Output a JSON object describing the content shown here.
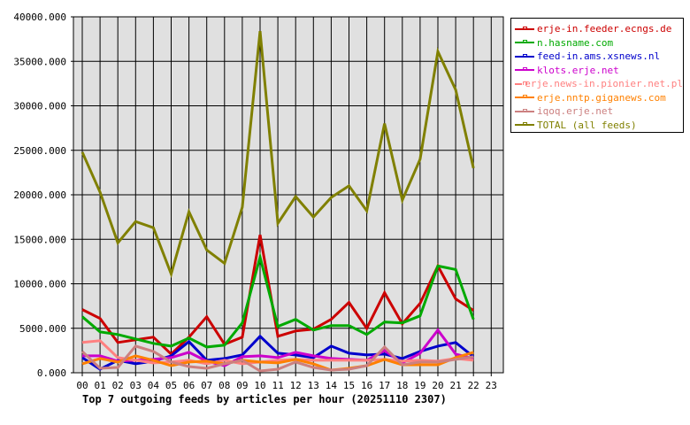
{
  "chart_data": {
    "type": "line",
    "title": "Top 7 outgoing feeds by articles per hour (20251110 2307)",
    "xlabel": "",
    "ylabel": "",
    "ylim": [
      0,
      40000
    ],
    "yticks": [
      "0.000",
      "5000.000",
      "10000.000",
      "15000.000",
      "20000.000",
      "25000.000",
      "30000.000",
      "35000.000",
      "40000.000"
    ],
    "categories": [
      "00",
      "01",
      "02",
      "03",
      "04",
      "05",
      "06",
      "07",
      "08",
      "09",
      "10",
      "11",
      "12",
      "13",
      "14",
      "15",
      "16",
      "17",
      "18",
      "19",
      "20",
      "21",
      "22",
      "23"
    ],
    "grid": true,
    "legend_position": "right",
    "series": [
      {
        "name": "erje-in.feeder.ecngs.de",
        "color": "#cc0000",
        "values": [
          7100,
          6100,
          3400,
          3700,
          4000,
          2100,
          4000,
          6300,
          3200,
          4000,
          15500,
          4100,
          4700,
          4900,
          6000,
          7900,
          5000,
          9000,
          5500,
          7800,
          12000,
          8300,
          7000,
          null
        ]
      },
      {
        "name": "n.hasname.com",
        "color": "#00aa00",
        "values": [
          6300,
          4600,
          4300,
          3800,
          3300,
          3000,
          3900,
          2900,
          3100,
          5600,
          13000,
          5200,
          6000,
          4800,
          5300,
          5300,
          4300,
          5700,
          5600,
          6400,
          12000,
          11600,
          6000,
          null
        ]
      },
      {
        "name": "feed-in.ams.xsnews.nl",
        "color": "#0000cc",
        "values": [
          1700,
          400,
          1400,
          1000,
          1300,
          1900,
          3500,
          1400,
          1600,
          2000,
          4100,
          2200,
          2000,
          1700,
          3000,
          2200,
          2000,
          2100,
          1600,
          2400,
          3000,
          3400,
          1800,
          null
        ]
      },
      {
        "name": "klots.erje.net",
        "color": "#cc00cc",
        "values": [
          1900,
          1900,
          1300,
          1400,
          1500,
          1700,
          2300,
          1300,
          800,
          1800,
          1900,
          1700,
          2300,
          1900,
          1600,
          1500,
          1400,
          2500,
          1100,
          2200,
          4800,
          2100,
          1600,
          null
        ]
      },
      {
        "name": "erje.news-in.pionier.net.pl",
        "color": "#ff8080",
        "values": [
          3400,
          3600,
          1700,
          1400,
          1100,
          1200,
          1400,
          1000,
          1400,
          1000,
          1200,
          1400,
          1500,
          1400,
          1400,
          1400,
          1400,
          1500,
          1300,
          1400,
          1300,
          1600,
          1400,
          null
        ]
      },
      {
        "name": "erje.nntp.giganews.com",
        "color": "#ff8000",
        "values": [
          1000,
          1600,
          1200,
          1900,
          1400,
          800,
          1200,
          1300,
          1000,
          1400,
          1200,
          1100,
          1500,
          1000,
          300,
          500,
          800,
          1500,
          900,
          900,
          900,
          1700,
          2300,
          null
        ]
      },
      {
        "name": "iqoq.erje.net",
        "color": "#cc8080",
        "values": [
          2400,
          500,
          600,
          3000,
          2400,
          1200,
          700,
          500,
          1000,
          1400,
          200,
          400,
          1200,
          600,
          300,
          400,
          800,
          2900,
          900,
          1200,
          1200,
          1500,
          1800,
          null
        ]
      },
      {
        "name": "TOTAL (all feeds)",
        "color": "#808000",
        "values": [
          24800,
          20300,
          14600,
          17000,
          16300,
          11100,
          18100,
          13800,
          12300,
          18600,
          38400,
          16800,
          19800,
          17500,
          19700,
          21000,
          18200,
          28000,
          19400,
          24000,
          36100,
          31800,
          23000,
          null
        ]
      }
    ]
  },
  "legend": {
    "items": [
      {
        "label": "erje-in.feeder.ecngs.de",
        "color": "#cc0000"
      },
      {
        "label": "n.hasname.com",
        "color": "#00aa00"
      },
      {
        "label": "feed-in.ams.xsnews.nl",
        "color": "#0000cc"
      },
      {
        "label": "klots.erje.net",
        "color": "#cc00cc"
      },
      {
        "label": "erje.news-in.pionier.net.pl",
        "color": "#ff8080"
      },
      {
        "label": "erje.nntp.giganews.com",
        "color": "#ff8000"
      },
      {
        "label": "iqoq.erje.net",
        "color": "#cc8080"
      },
      {
        "label": "TOTAL (all feeds)",
        "color": "#808000"
      }
    ]
  }
}
